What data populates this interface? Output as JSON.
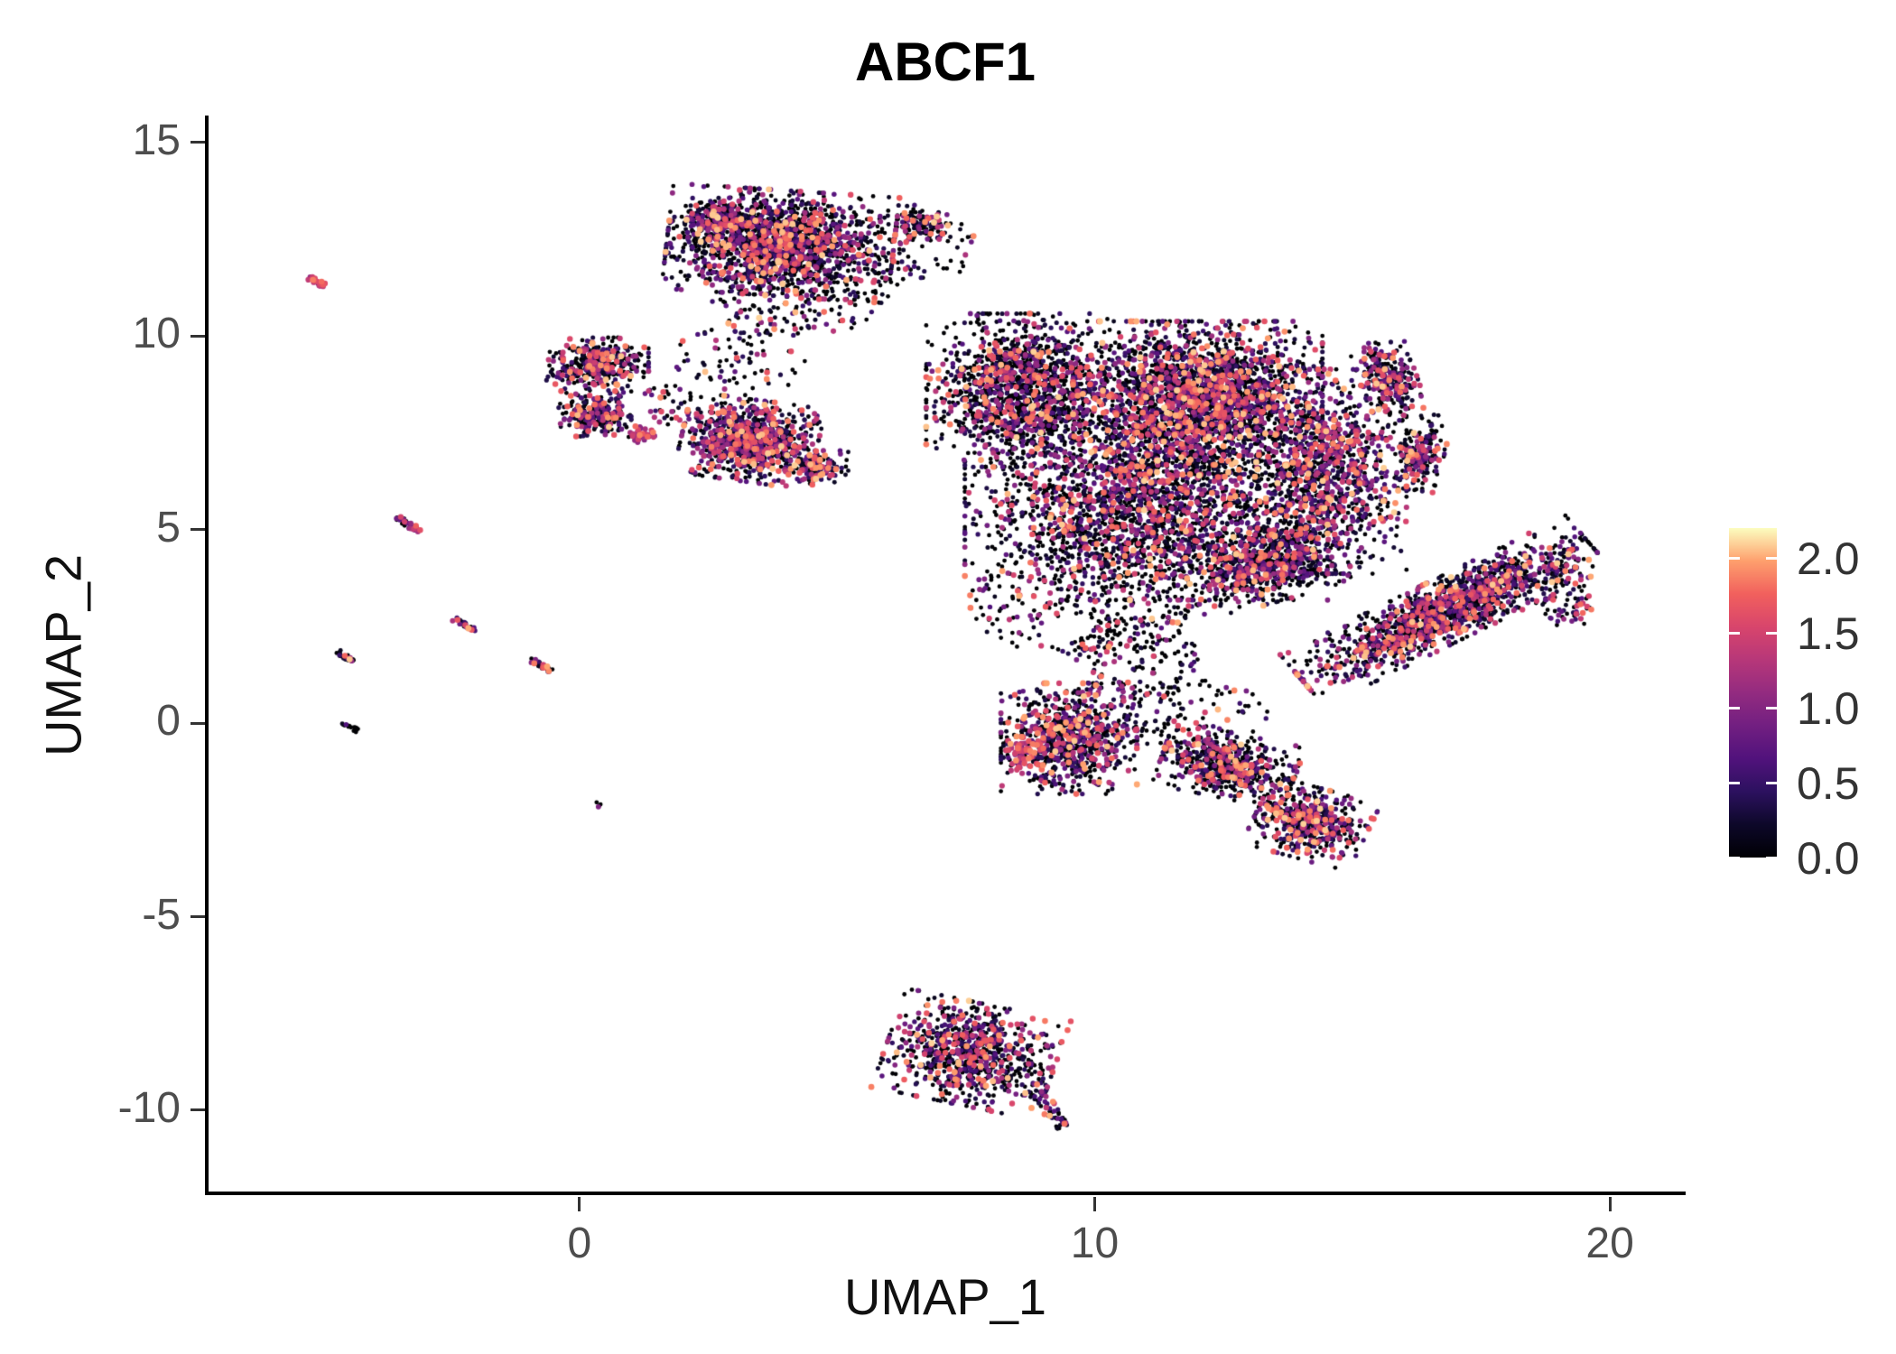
{
  "chart_data": {
    "type": "scatter",
    "title": "ABCF1",
    "xlabel": "UMAP_1",
    "ylabel": "UMAP_2",
    "xlim": [
      -7.2,
      21.4
    ],
    "ylim": [
      -12.1,
      15.65
    ],
    "x_ticks": [
      0,
      10,
      20
    ],
    "y_ticks": [
      -10,
      -5,
      0,
      5,
      10,
      15
    ],
    "grid": false,
    "legend_position": "right",
    "seed": 42,
    "colorbar": {
      "vmin": 0.0,
      "vmax": 2.2,
      "ticks": [
        {
          "label": "2.0",
          "value": 2.0
        },
        {
          "label": "1.5",
          "value": 1.5
        },
        {
          "label": "1.0",
          "value": 1.0
        },
        {
          "label": "0.5",
          "value": 0.5
        },
        {
          "label": "0.0",
          "value": 0.0
        }
      ]
    },
    "color_stops": [
      {
        "t": 0.0,
        "c": "#000004"
      },
      {
        "t": 0.1,
        "c": "#0d0829"
      },
      {
        "t": 0.2,
        "c": "#2c115f"
      },
      {
        "t": 0.3,
        "c": "#51127c"
      },
      {
        "t": 0.4,
        "c": "#721f81"
      },
      {
        "t": 0.5,
        "c": "#932b80"
      },
      {
        "t": 0.6,
        "c": "#b73779"
      },
      {
        "t": 0.7,
        "c": "#d8456c"
      },
      {
        "t": 0.8,
        "c": "#f1605d"
      },
      {
        "t": 0.9,
        "c": "#fe9f6d"
      },
      {
        "t": 1.0,
        "c": "#fcfdbf"
      }
    ],
    "clusters": [
      {
        "shape": "gauss",
        "cx": 3.9,
        "cy": 12.4,
        "rx": 1.0,
        "ry": 0.62,
        "rot": -5,
        "n": 1700,
        "p0": 0.45
      },
      {
        "shape": "gauss",
        "cx": 2.7,
        "cy": 13.0,
        "rx": 0.3,
        "ry": 0.22,
        "n": 280,
        "p0": 0.42
      },
      {
        "shape": "uniform",
        "cx": 4.2,
        "cy": 10.9,
        "rx": 1.7,
        "ry": 0.9,
        "n": 150,
        "p0": 0.5
      },
      {
        "shape": "gauss",
        "cx": 6.6,
        "cy": 12.9,
        "rx": 0.25,
        "ry": 0.22,
        "n": 120,
        "p0": 0.45
      },
      {
        "shape": "uniform",
        "cx": 5.9,
        "cy": 11.9,
        "rx": 0.9,
        "ry": 0.8,
        "n": 55,
        "p0": 0.5
      },
      {
        "shape": "uniform",
        "cx": 7.2,
        "cy": 12.3,
        "rx": 0.5,
        "ry": 0.7,
        "n": 25,
        "p0": 0.5
      },
      {
        "shape": "gauss",
        "cx": 0.35,
        "cy": 9.3,
        "rx": 0.45,
        "ry": 0.3,
        "n": 380,
        "p0": 0.38
      },
      {
        "shape": "gauss",
        "cx": 0.3,
        "cy": 8.0,
        "rx": 0.32,
        "ry": 0.27,
        "n": 260,
        "p0": 0.38
      },
      {
        "shape": "gauss",
        "cx": 1.15,
        "cy": 7.45,
        "rx": 0.14,
        "ry": 0.1,
        "n": 40,
        "p0": 0.1,
        "emin": 0.8,
        "emax": 1.9,
        "pow": 1
      },
      {
        "shape": "uniform",
        "cx": 1.7,
        "cy": 8.3,
        "rx": 0.5,
        "ry": 0.6,
        "n": 35,
        "p0": 0.45
      },
      {
        "shape": "gauss",
        "cx": 3.3,
        "cy": 7.3,
        "rx": 0.6,
        "ry": 0.48,
        "rot": -10,
        "n": 950,
        "p0": 0.32
      },
      {
        "shape": "gauss",
        "cx": 4.6,
        "cy": 6.6,
        "rx": 0.28,
        "ry": 0.2,
        "n": 140,
        "p0": 0.35
      },
      {
        "shape": "uniform",
        "cx": 3.1,
        "cy": 9.4,
        "rx": 1.3,
        "ry": 1.0,
        "n": 80,
        "p0": 0.5
      },
      {
        "shape": "gauss",
        "cx": 8.6,
        "cy": 8.6,
        "rx": 0.85,
        "ry": 0.9,
        "n": 1500,
        "p0": 0.5
      },
      {
        "shape": "gauss",
        "cx": 12.0,
        "cy": 8.4,
        "rx": 1.1,
        "ry": 0.9,
        "n": 2600,
        "p0": 0.42
      },
      {
        "shape": "gauss",
        "cx": 11.0,
        "cy": 5.6,
        "rx": 1.6,
        "ry": 1.1,
        "n": 2400,
        "p0": 0.45
      },
      {
        "shape": "gauss",
        "cx": 14.6,
        "cy": 6.5,
        "rx": 0.66,
        "ry": 1.2,
        "n": 1100,
        "p0": 0.38
      },
      {
        "shape": "gauss",
        "cx": 13.3,
        "cy": 4.1,
        "rx": 0.7,
        "ry": 0.45,
        "rot": 20,
        "n": 700,
        "p0": 0.45
      },
      {
        "shape": "uniform",
        "cx": 9.8,
        "cy": 3.2,
        "rx": 2.3,
        "ry": 1.5,
        "n": 300,
        "p0": 0.6
      },
      {
        "shape": "gauss",
        "cx": 15.7,
        "cy": 8.9,
        "rx": 0.25,
        "ry": 0.45,
        "rot": 15,
        "n": 280,
        "p0": 0.35
      },
      {
        "shape": "gauss",
        "cx": 16.35,
        "cy": 7.0,
        "rx": 0.2,
        "ry": 0.45,
        "rot": -10,
        "n": 200,
        "p0": 0.35
      },
      {
        "shape": "gauss",
        "cx": 16.8,
        "cy": 2.9,
        "rx": 1.5,
        "ry": 0.36,
        "rot": 33,
        "n": 1500,
        "p0": 0.4
      },
      {
        "shape": "uniform",
        "cx": 19.2,
        "cy": 3.4,
        "rx": 0.55,
        "ry": 1.1,
        "n": 100,
        "p0": 0.45
      },
      {
        "shape": "gauss",
        "cx": 9.5,
        "cy": -0.4,
        "rx": 0.6,
        "ry": 0.65,
        "n": 850,
        "p0": 0.4
      },
      {
        "shape": "gauss",
        "cx": 8.55,
        "cy": -0.7,
        "rx": 0.14,
        "ry": 0.28,
        "n": 55,
        "p0": 0.1,
        "emin": 0.9,
        "emax": 2.0,
        "pow": 1
      },
      {
        "shape": "uniform",
        "cx": 10.8,
        "cy": 1.7,
        "rx": 1.2,
        "ry": 1.2,
        "n": 160,
        "p0": 0.55
      },
      {
        "shape": "gauss",
        "cx": 12.6,
        "cy": -1.1,
        "rx": 0.6,
        "ry": 0.38,
        "rot": -15,
        "n": 600,
        "p0": 0.42
      },
      {
        "shape": "gauss",
        "cx": 14.2,
        "cy": -2.6,
        "rx": 0.5,
        "ry": 0.42,
        "rot": -20,
        "n": 520,
        "p0": 0.4
      },
      {
        "shape": "uniform",
        "cx": 11.9,
        "cy": 0.2,
        "rx": 1.5,
        "ry": 1.0,
        "n": 110,
        "p0": 0.6
      },
      {
        "shape": "gauss",
        "cx": 7.6,
        "cy": -8.55,
        "rx": 0.75,
        "ry": 0.6,
        "rot": -15,
        "n": 850,
        "p0": 0.42
      },
      {
        "shape": "line",
        "x1": 8.8,
        "y1": -9.3,
        "x2": 9.35,
        "y2": -10.45,
        "w": 0.15,
        "n": 60,
        "p0": 0.42
      },
      {
        "shape": "line",
        "x1": -5.25,
        "y1": 11.5,
        "x2": -4.95,
        "y2": 11.3,
        "w": 0.06,
        "n": 22,
        "p0": 0.05,
        "emin": 1.0,
        "emax": 2.0,
        "pow": 1
      },
      {
        "shape": "line",
        "x1": -3.6,
        "y1": 5.35,
        "x2": -3.1,
        "y2": 4.95,
        "w": 0.07,
        "n": 30,
        "p0": 0.2,
        "emin": 0.4,
        "emax": 1.8,
        "pow": 1
      },
      {
        "shape": "line",
        "x1": -2.45,
        "y1": 2.7,
        "x2": -2.0,
        "y2": 2.4,
        "w": 0.06,
        "n": 26,
        "p0": 0.3
      },
      {
        "shape": "line",
        "x1": -4.75,
        "y1": 1.9,
        "x2": -4.4,
        "y2": 1.6,
        "w": 0.06,
        "n": 22,
        "p0": 0.35
      },
      {
        "shape": "line",
        "x1": -0.95,
        "y1": 1.65,
        "x2": -0.55,
        "y2": 1.35,
        "w": 0.06,
        "n": 26,
        "p0": 0.35
      },
      {
        "shape": "line",
        "x1": -4.6,
        "y1": 0.0,
        "x2": -4.3,
        "y2": -0.2,
        "w": 0.05,
        "n": 16,
        "p0": 0.85
      },
      {
        "shape": "line",
        "x1": 0.3,
        "y1": -2.05,
        "x2": 0.4,
        "y2": -2.15,
        "w": 0.05,
        "n": 4,
        "p0": 0.5
      }
    ]
  }
}
